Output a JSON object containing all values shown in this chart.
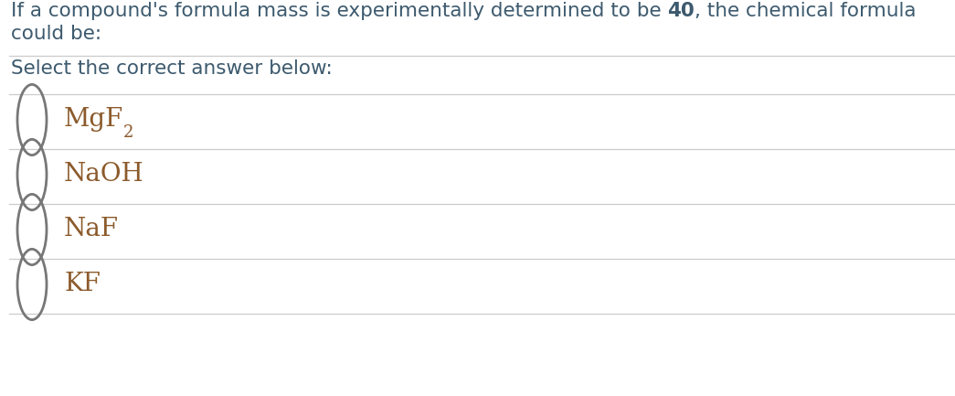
{
  "background_color": "#ffffff",
  "text_color": "#3d5a6e",
  "option_text_color": "#8b5a2b",
  "line_color": "#cccccc",
  "circle_color": "#777777",
  "question_line1_pre": "If a compound's formula mass is experimentally determined to be ",
  "question_line1_bold": "40",
  "question_line1_post": ", the chemical formula",
  "question_line2": "could be:",
  "subtitle": "Select the correct answer below:",
  "options": [
    {
      "main": "MgF",
      "sub": "2"
    },
    {
      "main": "NaOH",
      "sub": null
    },
    {
      "main": "NaF",
      "sub": null
    },
    {
      "main": "KF",
      "sub": null
    }
  ],
  "font_size_question": 15.5,
  "font_size_options": 20,
  "font_size_subtitle": 15.5,
  "font_size_sub": 13
}
